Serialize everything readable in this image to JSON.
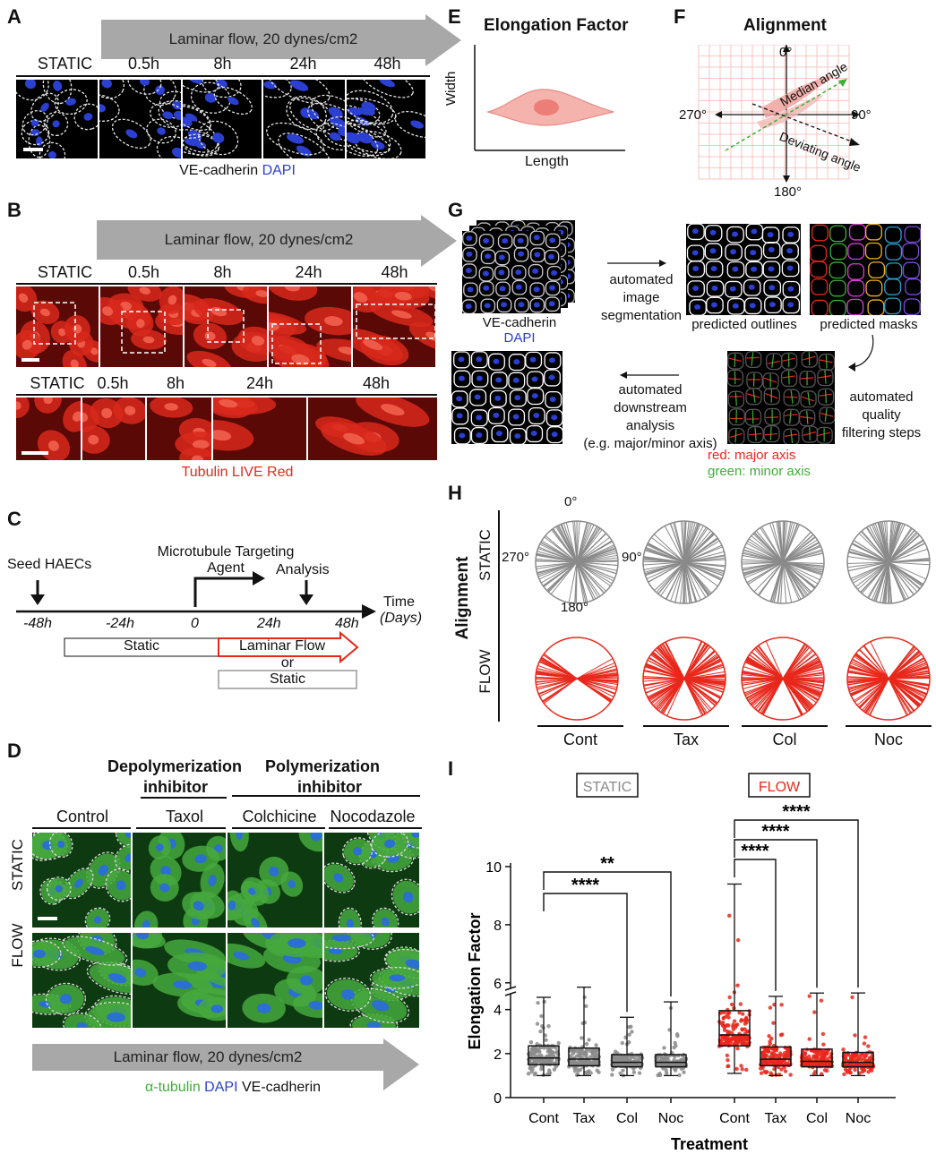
{
  "panels": {
    "A": {
      "label": "A",
      "flow_banner": "Laminar flow, 20 dynes/cm2",
      "timepoints": [
        "STATIC",
        "0.5h",
        "8h",
        "24h",
        "48h"
      ],
      "caption_parts": [
        "VE-cadherin",
        "DAPI"
      ],
      "colors": {
        "cadherin": "#ffffff",
        "dapi": "#2b3fd1"
      }
    },
    "B": {
      "label": "B",
      "flow_banner": "Laminar flow, 20 dynes/cm2",
      "timepoints": [
        "STATIC",
        "0.5h",
        "8h",
        "24h",
        "48h"
      ],
      "timepoints_zoom": [
        "STATIC",
        "0.5h",
        "8h",
        "24h",
        "48h"
      ],
      "caption": "Tubulin LIVE Red",
      "colors": {
        "tubulin": "#e8281c"
      }
    },
    "C": {
      "label": "C",
      "seed": "Seed HAECs",
      "agent": "Microtubule Targeting Agent",
      "agent_line1": "Microtubule Targeting",
      "agent_line2": "Agent",
      "analysis": "Analysis",
      "time": "Time",
      "days": "(Days)",
      "ticks": [
        "-48h",
        "-24h",
        "0",
        "24h",
        "48h"
      ],
      "static_box": "Static",
      "flow_box": "Laminar Flow",
      "or": "or",
      "static_box2": "Static"
    },
    "D": {
      "label": "D",
      "group1": "Depolymerization",
      "group1b": "inhibitor",
      "group2": "Polymerization",
      "group2b": "inhibitor",
      "columns": [
        "Control",
        "Taxol",
        "Colchicine",
        "Nocodazole"
      ],
      "rows": [
        "STATIC",
        "FLOW"
      ],
      "flow_banner": "Laminar flow, 20 dynes/cm2",
      "caption_parts": [
        "α-tubulin",
        "DAPI",
        "VE-cadherin"
      ],
      "colors": {
        "tubulin": "#3fae3a",
        "dapi": "#2b3fd1"
      }
    },
    "E": {
      "label": "E",
      "title": "Elongation Factor",
      "ylabel": "Width",
      "xlabel": "Length"
    },
    "F": {
      "label": "F",
      "title": "Alignment",
      "angles": [
        "0°",
        "90°",
        "180°",
        "270°"
      ],
      "median": "Median angle",
      "deviating": "Deviating angle"
    },
    "G": {
      "label": "G",
      "input_caption1": "VE-cadherin",
      "input_caption2": "DAPI",
      "step1": [
        "automated",
        "image",
        "segmentation"
      ],
      "outlines": "predicted outlines",
      "masks": "predicted masks",
      "step2": [
        "automated",
        "quality",
        "filtering steps"
      ],
      "step3": [
        "automated",
        "downstream",
        "analysis",
        "(e.g. major/minor axis)"
      ],
      "legend_red": "red: major axis",
      "legend_green": "green: minor axis"
    },
    "H": {
      "label": "H",
      "ylabel": "Alignment",
      "rows": [
        "STATIC",
        "FLOW"
      ],
      "angles": [
        "0°",
        "90°",
        "180°",
        "270°"
      ],
      "groups": [
        "Cont",
        "Tax",
        "Col",
        "Noc"
      ],
      "colors": {
        "static": "#8a8a8a",
        "flow": "#e8281c"
      }
    }
  },
  "chart_data": {
    "label": "I",
    "type": "scatter",
    "ylabel": "Elongation Factor",
    "xlabel": "Treatment",
    "group_labels": [
      "STATIC",
      "FLOW"
    ],
    "categories": [
      "Cont",
      "Tax",
      "Col",
      "Noc",
      "Cont",
      "Tax",
      "Col",
      "Noc"
    ],
    "yticks_lower": [
      "0",
      "2",
      "4"
    ],
    "yticks_upper": [
      "6",
      "8",
      "10"
    ],
    "ylim": [
      0,
      10
    ],
    "axis_break": [
      4.8,
      5.5
    ],
    "significance": [
      {
        "from": 0,
        "to": 3,
        "label": "**"
      },
      {
        "from": 0,
        "to": 2,
        "label": "****"
      },
      {
        "from": 4,
        "to": 7,
        "label": "****"
      },
      {
        "from": 4,
        "to": 6,
        "label": "****"
      },
      {
        "from": 4,
        "to": 5,
        "label": "****"
      }
    ],
    "series": [
      {
        "name": "STATIC",
        "color": "#8a8a8a",
        "boxes": [
          {
            "cat": "Cont",
            "min": 1.0,
            "q1": 1.5,
            "median": 1.8,
            "q3": 2.35,
            "max": 4.95
          },
          {
            "cat": "Tax",
            "min": 1.0,
            "q1": 1.45,
            "median": 1.75,
            "q3": 2.25,
            "max": 5.85
          },
          {
            "cat": "Col",
            "min": 1.0,
            "q1": 1.4,
            "median": 1.6,
            "q3": 1.95,
            "max": 3.65
          },
          {
            "cat": "Noc",
            "min": 1.0,
            "q1": 1.4,
            "median": 1.6,
            "q3": 1.95,
            "max": 4.35
          }
        ]
      },
      {
        "name": "FLOW",
        "color": "#e8281c",
        "boxes": [
          {
            "cat": "Cont",
            "min": 1.1,
            "q1": 2.35,
            "median": 2.85,
            "q3": 3.95,
            "max": 9.4
          },
          {
            "cat": "Tax",
            "min": 1.0,
            "q1": 1.45,
            "median": 1.75,
            "q3": 2.3,
            "max": 4.6
          },
          {
            "cat": "Col",
            "min": 1.0,
            "q1": 1.4,
            "median": 1.65,
            "q3": 2.2,
            "max": 4.75
          },
          {
            "cat": "Noc",
            "min": 1.0,
            "q1": 1.4,
            "median": 1.6,
            "q3": 2.05,
            "max": 5.65
          }
        ]
      }
    ]
  }
}
